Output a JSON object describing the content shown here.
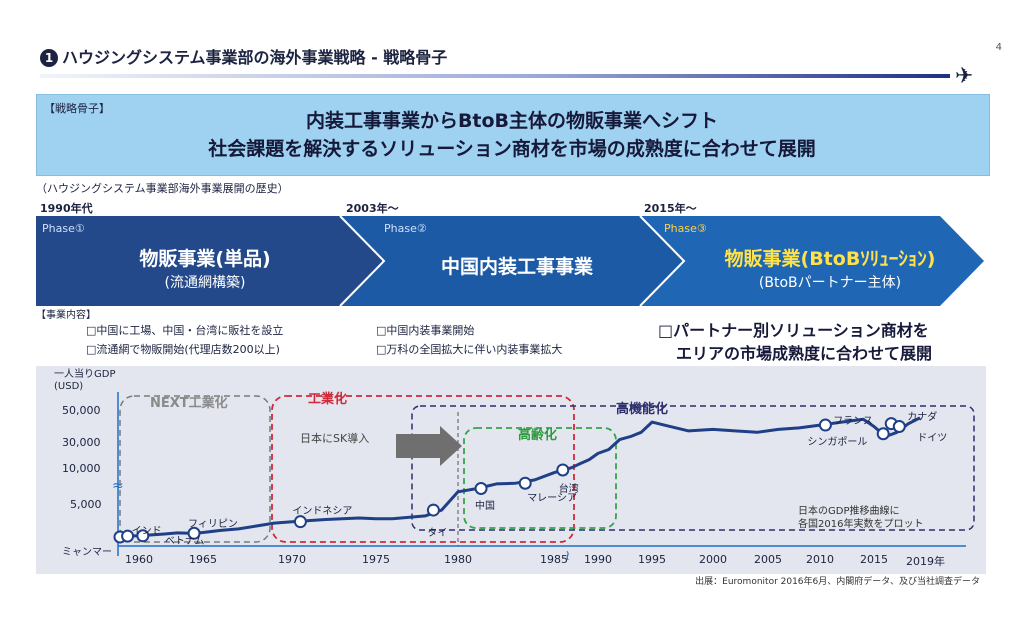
{
  "header": {
    "section_number": "1",
    "title": "ハウジングシステム事業部の海外事業戦略 - 戦略骨子",
    "page_number": "4",
    "plane_icon": "airplane-icon"
  },
  "strategy": {
    "tag": "【戦略骨子】",
    "line1": "内装工事事業からBtoB主体の物販事業へシフト",
    "line2": "社会課題を解決するソリューション商材を市場の成熟度に合わせて展開"
  },
  "history": {
    "title": "（ハウジングシステム事業部海外事業展開の歴史）",
    "eras": [
      "1990年代",
      "2003年～",
      "2015年～"
    ]
  },
  "phases": [
    {
      "label": "Phase①",
      "main": "物販事業(単品)",
      "sub": "(流通網構築)"
    },
    {
      "label": "Phase②",
      "main": "中国内装工事事業",
      "sub": ""
    },
    {
      "label": "Phase③",
      "main_yellow": "物販事業(BtoBｿﾘｭｰｼｮﾝ)",
      "sub": "(BtoBパートナー主体)"
    }
  ],
  "business": {
    "tag": "【事業内容】",
    "phase1_items": [
      "□中国に工場、中国・台湾に販社を設立",
      "□流通網で物販開始(代理店数200以上)"
    ],
    "phase2_items": [
      "□中国内装事業開始",
      "□万科の全国拡大に伴い内装事業拡大"
    ],
    "phase3_line1": "□パートナー別ソリューション商材を",
    "phase3_line2": "エリアの市場成熟度に合わせて展開"
  },
  "chart_data": {
    "type": "line",
    "ylabel": "一人当りGDP\n(USD)",
    "y_ticks": [
      "50,000",
      "30,000",
      "10,000",
      "5,000"
    ],
    "x_ticks": [
      "1960",
      "1965",
      "1970",
      "1975",
      "1980",
      "1985",
      "1990",
      "1995",
      "2000",
      "2005",
      "2010",
      "2015",
      "2019年"
    ],
    "series": [
      {
        "x": [
          1957.5,
          1958,
          1960,
          1962,
          1963,
          1964,
          1965,
          1966,
          1967,
          1968,
          1969,
          1970,
          1972,
          1974,
          1975,
          1976,
          1978,
          1979,
          1980,
          1981,
          1982,
          1983,
          1984,
          1985,
          1986,
          1987,
          1988,
          1989,
          1990,
          1991,
          1992,
          1993,
          1994,
          1995,
          1996,
          1998,
          2000,
          2002,
          2004,
          2006,
          2008,
          2009,
          2010,
          2012,
          2014,
          2015,
          2016,
          2017,
          2018,
          2019
        ],
        "y": [
          500,
          650,
          700,
          1000,
          1150,
          1100,
          1200,
          1500,
          1700,
          2100,
          2500,
          2700,
          3000,
          3200,
          3100,
          3100,
          3500,
          4300,
          7000,
          7500,
          8200,
          8300,
          8800,
          9900,
          11300,
          12800,
          15500,
          18000,
          22000,
          24500,
          31000,
          33000,
          36000,
          43000,
          41000,
          37000,
          38000,
          37000,
          36000,
          38000,
          39000,
          40000,
          41000,
          43000,
          45000,
          40000,
          33000,
          36000,
          42000,
          46000
        ]
      }
    ],
    "markers": [
      {
        "label": "ミャンマー",
        "x": 1957.5,
        "y": 500
      },
      {
        "label": "インド",
        "x": 1958.5,
        "y": 650
      },
      {
        "label": "ベトナム",
        "x": 1960.3,
        "y": 700
      },
      {
        "label": "フィリピン",
        "x": 1964.3,
        "y": 1100
      },
      {
        "label": "インドネシア",
        "x": 1970.5,
        "y": 2700
      },
      {
        "label": "タイ",
        "x": 1978.5,
        "y": 4300
      },
      {
        "label": "中国",
        "x": 1981.2,
        "y": 7500
      },
      {
        "label": "マレーシア",
        "x": 1983.5,
        "y": 8300
      },
      {
        "label": "台湾",
        "x": 1986,
        "y": 11300
      },
      {
        "label": "シンガポール",
        "x": 2010.5,
        "y": 41000
      },
      {
        "label": "フランス",
        "x": 2015.8,
        "y": 35000
      },
      {
        "label": "カナダ",
        "x": 2016.5,
        "y": 42000
      },
      {
        "label": "ドイツ",
        "x": 2017.2,
        "y": 40000
      }
    ],
    "regions": [
      "NEXT工業化",
      "工業化",
      "高齢化",
      "高機能化"
    ],
    "annotation_arrow": "日本にSK導入",
    "note_line1": "日本のGDP推移曲線に",
    "note_line2": "各国2016年実数をプロット",
    "colors": {
      "curve": "#1f3f86",
      "industrial": "#d02a3a",
      "aging": "#34a34a",
      "advanced": "#2e2f6e",
      "next": "#7a7a7a"
    }
  },
  "source": "出展：Euromonitor 2016年6月、内閣府データ、及び当社調査データ"
}
